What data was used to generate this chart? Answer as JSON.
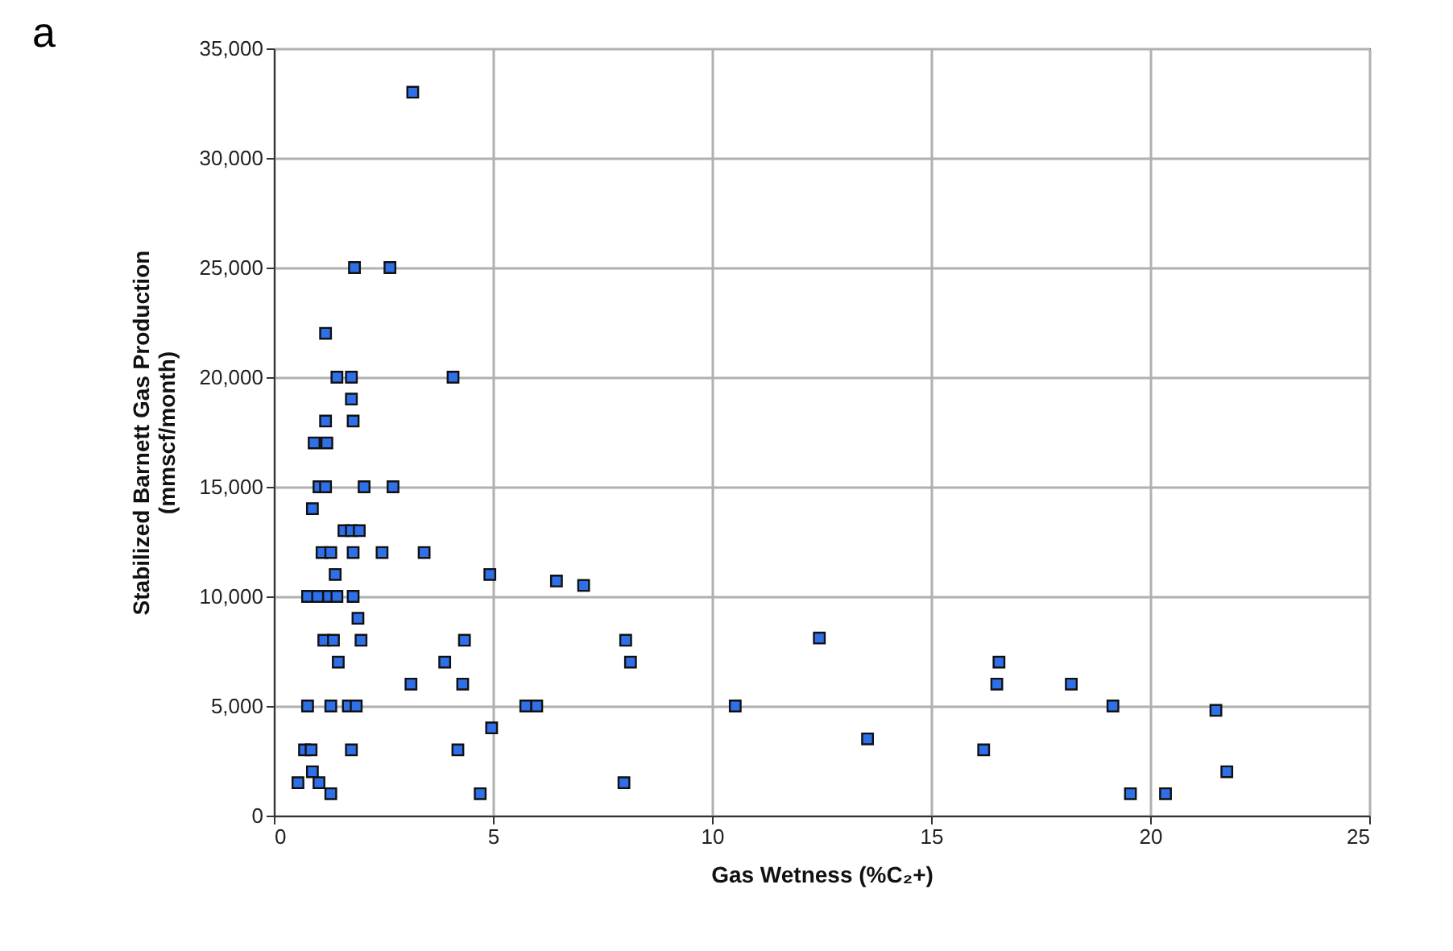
{
  "chart_data": {
    "type": "scatter",
    "annotations": [
      "a"
    ],
    "xlabel": "Gas Wetness  (%C₂+)",
    "ylabel": "Stabilized Barnett Gas Production\n(mmscf/month)",
    "xlim": [
      0,
      25
    ],
    "xticks": [
      0,
      5,
      10,
      15,
      20,
      25
    ],
    "ylim": [
      0,
      35000
    ],
    "yticks": [
      {
        "value": 0,
        "label": "0"
      },
      {
        "value": 5000,
        "label": "5,000"
      },
      {
        "value": 10000,
        "label": "10,000"
      },
      {
        "value": 15000,
        "label": "15,000"
      },
      {
        "value": 20000,
        "label": "20,000"
      },
      {
        "value": 25000,
        "label": "25,000"
      },
      {
        "value": 30000,
        "label": "30,000"
      },
      {
        "value": 35000,
        "label": "35,000"
      }
    ],
    "grid": true,
    "marker": "square",
    "series": [
      {
        "color": "#2f6fe8",
        "x": [
          3.17,
          1.84,
          2.65,
          1.18,
          1.44,
          1.77,
          4.09,
          1.77,
          1.18,
          1.81,
          0.92,
          1.21,
          1.03,
          1.18,
          2.06,
          2.72,
          0.88,
          1.6,
          1.77,
          1.95,
          1.1,
          1.3,
          1.81,
          2.47,
          3.43,
          1.4,
          4.93,
          6.45,
          7.07,
          0.77,
          1.0,
          1.25,
          1.44,
          1.81,
          1.92,
          1.14,
          1.36,
          1.99,
          4.35,
          8.03,
          12.45,
          1.47,
          3.9,
          8.14,
          16.55,
          3.13,
          4.31,
          16.5,
          18.2,
          0.77,
          1.3,
          1.7,
          1.88,
          5.75,
          6.0,
          10.53,
          19.15,
          21.5,
          4.97,
          0.7,
          0.85,
          1.77,
          4.2,
          16.2,
          13.55,
          0.88,
          21.75,
          0.55,
          1.03,
          7.99,
          1.3,
          4.71,
          19.55,
          20.35
        ],
        "values": [
          33000,
          25000,
          25000,
          22000,
          20000,
          20000,
          20000,
          19000,
          18000,
          18000,
          17000,
          17000,
          15000,
          15000,
          15000,
          15000,
          14000,
          13000,
          13000,
          13000,
          12000,
          12000,
          12000,
          12000,
          12000,
          11000,
          11000,
          10700,
          10500,
          10000,
          10000,
          10000,
          10000,
          10000,
          9000,
          8000,
          8000,
          8000,
          8000,
          8000,
          8100,
          7000,
          7000,
          7000,
          7000,
          6000,
          6000,
          6000,
          6000,
          5000,
          5000,
          5000,
          5000,
          5000,
          5000,
          5000,
          5000,
          4800,
          4000,
          3000,
          3000,
          3000,
          3000,
          3000,
          3500,
          2000,
          2000,
          1500,
          1500,
          1500,
          1000,
          1000,
          1000,
          1000
        ]
      }
    ]
  }
}
